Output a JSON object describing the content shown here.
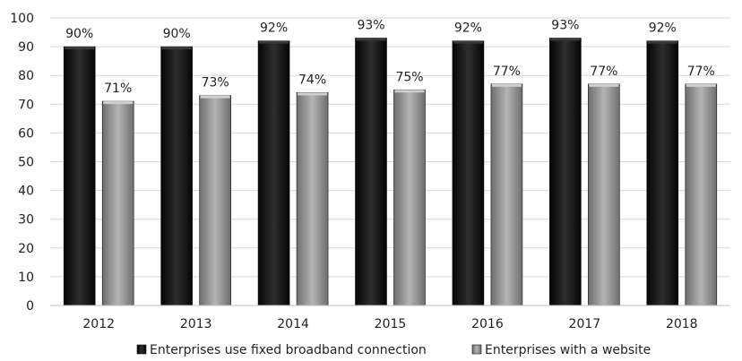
{
  "chart_data": {
    "type": "bar",
    "categories": [
      "2012",
      "2013",
      "2014",
      "2015",
      "2016",
      "2017",
      "2018"
    ],
    "series": [
      {
        "name": "Enterprises use fixed broadband connection",
        "values": [
          90,
          90,
          92,
          93,
          92,
          93,
          92
        ],
        "labels": [
          "90%",
          "90%",
          "92%",
          "93%",
          "92%",
          "93%",
          "92%"
        ],
        "color": "#1c1c1c"
      },
      {
        "name": "Enterprises with a website",
        "values": [
          71,
          73,
          74,
          75,
          77,
          77,
          77
        ],
        "labels": [
          "71%",
          "73%",
          "74%",
          "75%",
          "77%",
          "77%",
          "77%"
        ],
        "color": "#8f8f8f"
      }
    ],
    "yticks": [
      "0",
      "10",
      "20",
      "30",
      "40",
      "50",
      "60",
      "70",
      "80",
      "90",
      "100"
    ],
    "ylim": [
      0,
      100
    ],
    "grid": true,
    "legend": "bottom-center",
    "title": "",
    "xlabel": "",
    "ylabel": ""
  }
}
